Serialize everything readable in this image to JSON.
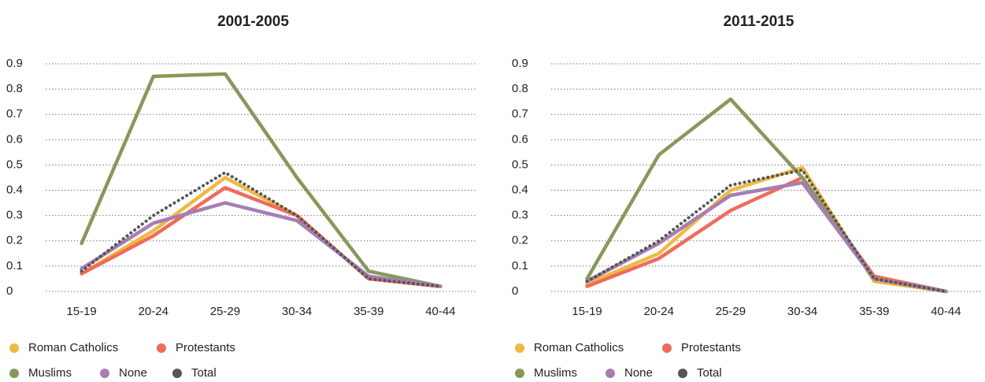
{
  "chart_data": [
    {
      "type": "line",
      "title": "2001-2005",
      "categories": [
        "15-19",
        "20-24",
        "25-29",
        "30-34",
        "35-39",
        "40-44"
      ],
      "ylim": [
        0,
        0.9
      ],
      "yticks": [
        0,
        0.1,
        0.2,
        0.3,
        0.4,
        0.5,
        0.6,
        0.7,
        0.8,
        0.9
      ],
      "grid": true,
      "series": [
        {
          "name": "Roman Catholics",
          "color": "#f0b942",
          "values": [
            0.07,
            0.24,
            0.45,
            0.3,
            0.05,
            0.02
          ]
        },
        {
          "name": "Protestants",
          "color": "#ef6b5b",
          "values": [
            0.07,
            0.22,
            0.41,
            0.3,
            0.05,
            0.02
          ]
        },
        {
          "name": "Muslims",
          "color": "#87995a",
          "values": [
            0.19,
            0.85,
            0.86,
            0.45,
            0.08,
            0.02
          ]
        },
        {
          "name": "None",
          "color": "#a67eb3",
          "values": [
            0.09,
            0.27,
            0.35,
            0.28,
            0.06,
            0.02
          ]
        },
        {
          "name": "Total",
          "color": "#555555",
          "values": [
            0.08,
            0.3,
            0.47,
            0.3,
            0.05,
            0.02
          ]
        }
      ]
    },
    {
      "type": "line",
      "title": "2011-2015",
      "categories": [
        "15-19",
        "20-24",
        "25-29",
        "30-34",
        "35-39",
        "40-44"
      ],
      "ylim": [
        0,
        0.9
      ],
      "yticks": [
        0,
        0.1,
        0.2,
        0.3,
        0.4,
        0.5,
        0.6,
        0.7,
        0.8,
        0.9
      ],
      "grid": true,
      "series": [
        {
          "name": "Roman Catholics",
          "color": "#f0b942",
          "values": [
            0.03,
            0.15,
            0.4,
            0.49,
            0.04,
            0.0
          ]
        },
        {
          "name": "Protestants",
          "color": "#ef6b5b",
          "values": [
            0.02,
            0.13,
            0.32,
            0.45,
            0.06,
            0.0
          ]
        },
        {
          "name": "Muslims",
          "color": "#87995a",
          "values": [
            0.05,
            0.54,
            0.76,
            0.45,
            0.05,
            0.0
          ]
        },
        {
          "name": "None",
          "color": "#a67eb3",
          "values": [
            0.04,
            0.19,
            0.38,
            0.43,
            0.05,
            0.0
          ]
        },
        {
          "name": "Total",
          "color": "#555555",
          "values": [
            0.04,
            0.2,
            0.42,
            0.48,
            0.05,
            0.0
          ]
        }
      ]
    }
  ]
}
